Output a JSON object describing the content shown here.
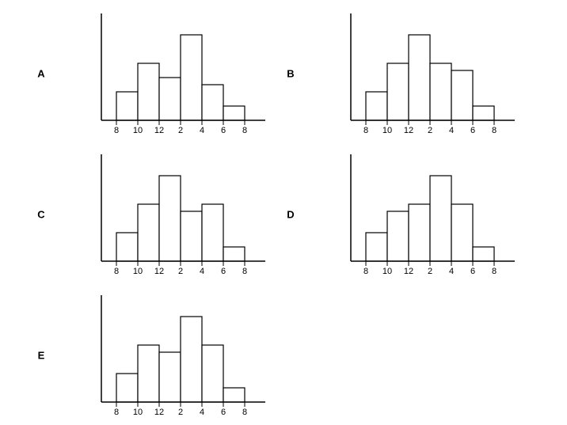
{
  "chart_data": [
    {
      "type": "histogram",
      "title": "A",
      "bins": [
        "8",
        "10",
        "12",
        "2",
        "4",
        "6",
        "8"
      ],
      "values": [
        4,
        8,
        6,
        12,
        5,
        2
      ],
      "ylim": [
        0,
        15
      ],
      "color": "#ffffff"
    },
    {
      "type": "histogram",
      "title": "B",
      "bins": [
        "8",
        "10",
        "12",
        "2",
        "4",
        "6",
        "8"
      ],
      "values": [
        4,
        8,
        12,
        8,
        7,
        2
      ],
      "ylim": [
        0,
        15
      ],
      "color": "#ffffff"
    },
    {
      "type": "histogram",
      "title": "C",
      "bins": [
        "8",
        "10",
        "12",
        "2",
        "4",
        "6",
        "8"
      ],
      "values": [
        4,
        8,
        12,
        7,
        8,
        2
      ],
      "ylim": [
        0,
        15
      ],
      "color": "#ffffff"
    },
    {
      "type": "histogram",
      "title": "D",
      "bins": [
        "8",
        "10",
        "12",
        "2",
        "4",
        "6",
        "8"
      ],
      "values": [
        4,
        7,
        8,
        12,
        8,
        2
      ],
      "ylim": [
        0,
        15
      ],
      "color": "#ffffff"
    },
    {
      "type": "histogram",
      "title": "E",
      "bins": [
        "8",
        "10",
        "12",
        "2",
        "4",
        "6",
        "8"
      ],
      "values": [
        4,
        8,
        7,
        12,
        8,
        2
      ],
      "ylim": [
        0,
        15
      ],
      "color": "#ffffff"
    }
  ]
}
